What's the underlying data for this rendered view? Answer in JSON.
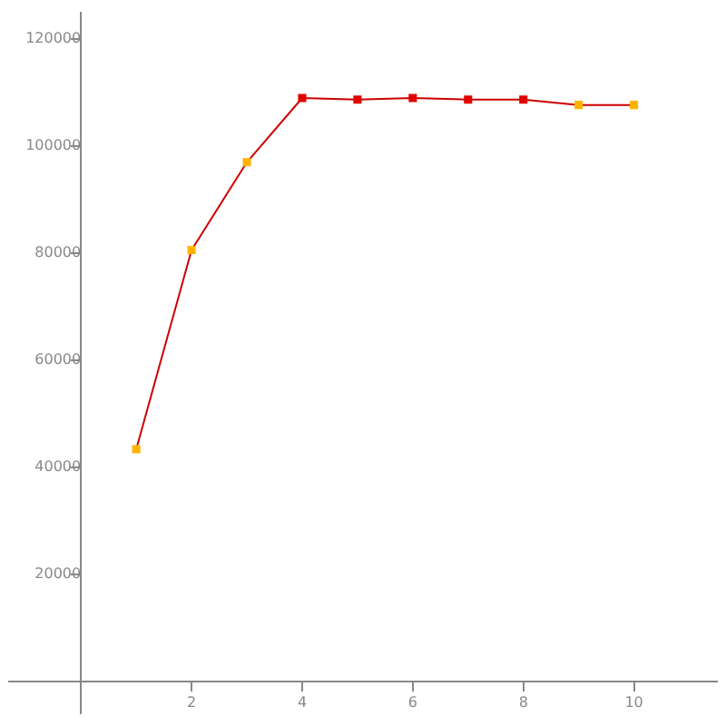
{
  "chart_data": {
    "type": "line",
    "x": [
      1,
      2,
      3,
      4,
      5,
      6,
      7,
      8,
      9,
      10
    ],
    "series": [
      {
        "color": "#cc0000",
        "colors": [
          "#ffb300",
          "#ffb300",
          "#ffb300",
          "#e00000",
          "#e00000",
          "#e00000",
          "#e00000",
          "#e00000",
          "#ffb300",
          "#ffb300"
        ],
        "values": [
          43400,
          80600,
          97000,
          109000,
          108700,
          109000,
          108700,
          108700,
          107700,
          107700
        ]
      }
    ],
    "xlim": [
      -1.3,
      11.5
    ],
    "ylim": [
      -6000,
      125000
    ],
    "xticks": [
      2,
      4,
      6,
      8,
      10
    ],
    "yticks": [
      20000,
      40000,
      60000,
      80000,
      100000,
      120000
    ],
    "grid": false,
    "legend": false,
    "marker": "square",
    "line_style": "solid"
  }
}
